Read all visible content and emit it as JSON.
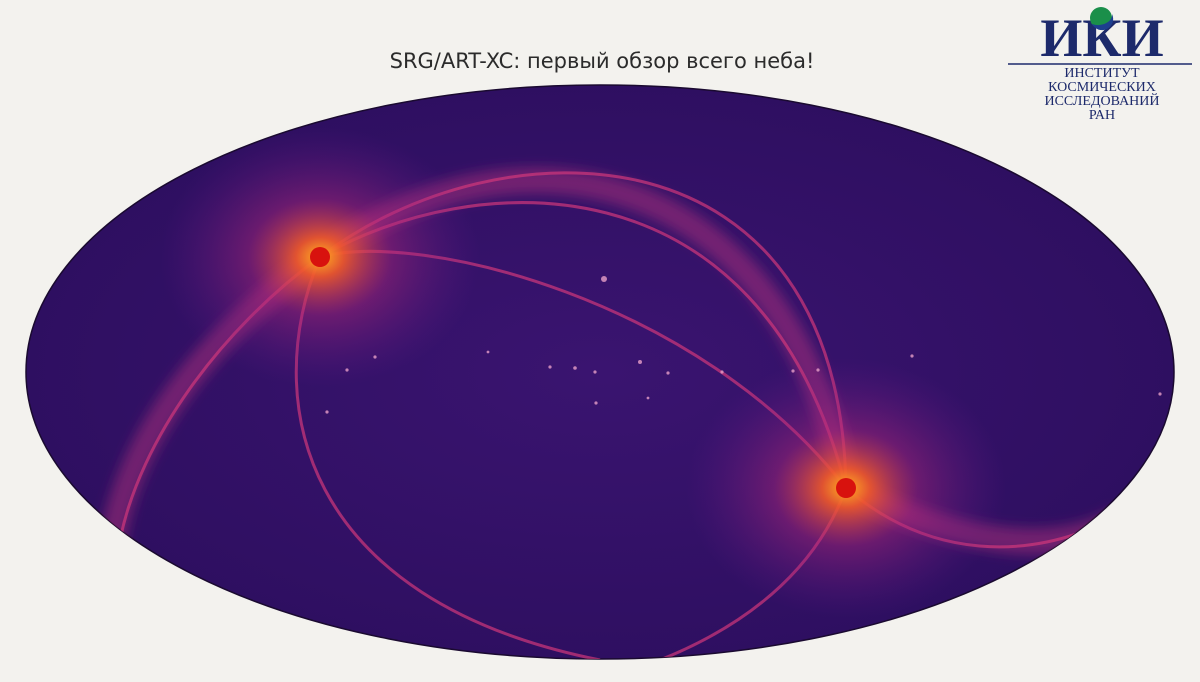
{
  "header": {
    "title": "SRG/ART-XC: первый обзор всего неба!"
  },
  "logo": {
    "mark": "ИКИ",
    "lines": [
      "ИНСТИТУТ",
      "КОСМИЧЕСКИХ",
      "ИССЛЕДОВАНИЙ",
      "РАН"
    ]
  }
}
